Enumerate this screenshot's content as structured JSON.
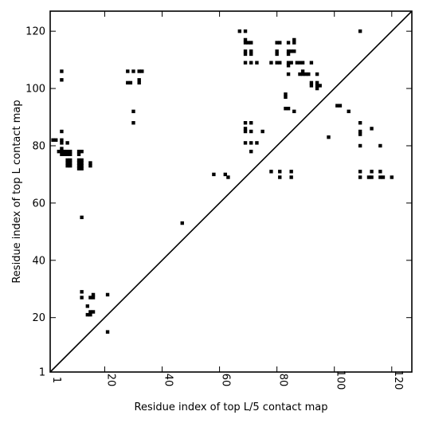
{
  "chart_data": {
    "type": "scatter",
    "xlabel": "Residue index of top L/5 contact map",
    "ylabel": "Residue index of top L contact map",
    "xlim": [
      1,
      127
    ],
    "ylim": [
      1,
      127
    ],
    "x_ticks": [
      1,
      20,
      40,
      60,
      80,
      100,
      120
    ],
    "y_ticks": [
      1,
      20,
      40,
      60,
      80,
      100,
      120
    ],
    "diagonal": true,
    "marker": "filled-square",
    "marker_color": "#000000",
    "points": [
      [
        2,
        82
      ],
      [
        3,
        82
      ],
      [
        4,
        78
      ],
      [
        5,
        85
      ],
      [
        5,
        82
      ],
      [
        5,
        81
      ],
      [
        5,
        79
      ],
      [
        5,
        78
      ],
      [
        5,
        77
      ],
      [
        6,
        78
      ],
      [
        6,
        77
      ],
      [
        7,
        81
      ],
      [
        7,
        78
      ],
      [
        7,
        77
      ],
      [
        7,
        75
      ],
      [
        7,
        74
      ],
      [
        7,
        73
      ],
      [
        8,
        78
      ],
      [
        8,
        77
      ],
      [
        8,
        75
      ],
      [
        8,
        74
      ],
      [
        8,
        73
      ],
      [
        11,
        78
      ],
      [
        11,
        77
      ],
      [
        11,
        75
      ],
      [
        11,
        74
      ],
      [
        11,
        73
      ],
      [
        11,
        72
      ],
      [
        12,
        78
      ],
      [
        12,
        75
      ],
      [
        12,
        74
      ],
      [
        12,
        73
      ],
      [
        12,
        72
      ],
      [
        15,
        74
      ],
      [
        15,
        73
      ],
      [
        12,
        55
      ],
      [
        5,
        106
      ],
      [
        5,
        103
      ],
      [
        12,
        29
      ],
      [
        12,
        27
      ],
      [
        14,
        24
      ],
      [
        14,
        21
      ],
      [
        15,
        21
      ],
      [
        15,
        22
      ],
      [
        15,
        27
      ],
      [
        16,
        27
      ],
      [
        16,
        28
      ],
      [
        16,
        22
      ],
      [
        21,
        28
      ],
      [
        21,
        15
      ],
      [
        28,
        106
      ],
      [
        28,
        102
      ],
      [
        29,
        102
      ],
      [
        30,
        106
      ],
      [
        30,
        92
      ],
      [
        30,
        88
      ],
      [
        32,
        106
      ],
      [
        32,
        103
      ],
      [
        32,
        102
      ],
      [
        33,
        106
      ],
      [
        47,
        53
      ],
      [
        58,
        70
      ],
      [
        62,
        70
      ],
      [
        63,
        69
      ],
      [
        67,
        120
      ],
      [
        69,
        120
      ],
      [
        69,
        117
      ],
      [
        69,
        116
      ],
      [
        69,
        113
      ],
      [
        69,
        112
      ],
      [
        69,
        109
      ],
      [
        70,
        116
      ],
      [
        71,
        116
      ],
      [
        71,
        113
      ],
      [
        71,
        112
      ],
      [
        71,
        109
      ],
      [
        73,
        109
      ],
      [
        69,
        88
      ],
      [
        69,
        86
      ],
      [
        69,
        85
      ],
      [
        69,
        81
      ],
      [
        71,
        88
      ],
      [
        71,
        85
      ],
      [
        71,
        81
      ],
      [
        71,
        78
      ],
      [
        73,
        81
      ],
      [
        75,
        85
      ],
      [
        78,
        109
      ],
      [
        78,
        71
      ],
      [
        80,
        116
      ],
      [
        80,
        113
      ],
      [
        80,
        112
      ],
      [
        80,
        109
      ],
      [
        81,
        116
      ],
      [
        81,
        109
      ],
      [
        81,
        71
      ],
      [
        81,
        69
      ],
      [
        83,
        98
      ],
      [
        83,
        97
      ],
      [
        83,
        93
      ],
      [
        84,
        116
      ],
      [
        84,
        113
      ],
      [
        84,
        112
      ],
      [
        84,
        109
      ],
      [
        84,
        108
      ],
      [
        84,
        105
      ],
      [
        84,
        93
      ],
      [
        85,
        113
      ],
      [
        85,
        109
      ],
      [
        85,
        71
      ],
      [
        85,
        69
      ],
      [
        86,
        117
      ],
      [
        86,
        116
      ],
      [
        86,
        113
      ],
      [
        86,
        92
      ],
      [
        87,
        109
      ],
      [
        88,
        109
      ],
      [
        88,
        105
      ],
      [
        89,
        109
      ],
      [
        89,
        106
      ],
      [
        89,
        105
      ],
      [
        90,
        105
      ],
      [
        91,
        105
      ],
      [
        92,
        109
      ],
      [
        92,
        102
      ],
      [
        92,
        101
      ],
      [
        94,
        105
      ],
      [
        94,
        102
      ],
      [
        94,
        101
      ],
      [
        94,
        100
      ],
      [
        95,
        101
      ],
      [
        98,
        83
      ],
      [
        101,
        94
      ],
      [
        102,
        94
      ],
      [
        105,
        92
      ],
      [
        109,
        120
      ],
      [
        109,
        88
      ],
      [
        109,
        85
      ],
      [
        109,
        84
      ],
      [
        109,
        80
      ],
      [
        109,
        71
      ],
      [
        109,
        69
      ],
      [
        112,
        69
      ],
      [
        113,
        86
      ],
      [
        113,
        71
      ],
      [
        113,
        69
      ],
      [
        116,
        80
      ],
      [
        116,
        71
      ],
      [
        116,
        69
      ],
      [
        117,
        69
      ],
      [
        120,
        69
      ]
    ]
  }
}
